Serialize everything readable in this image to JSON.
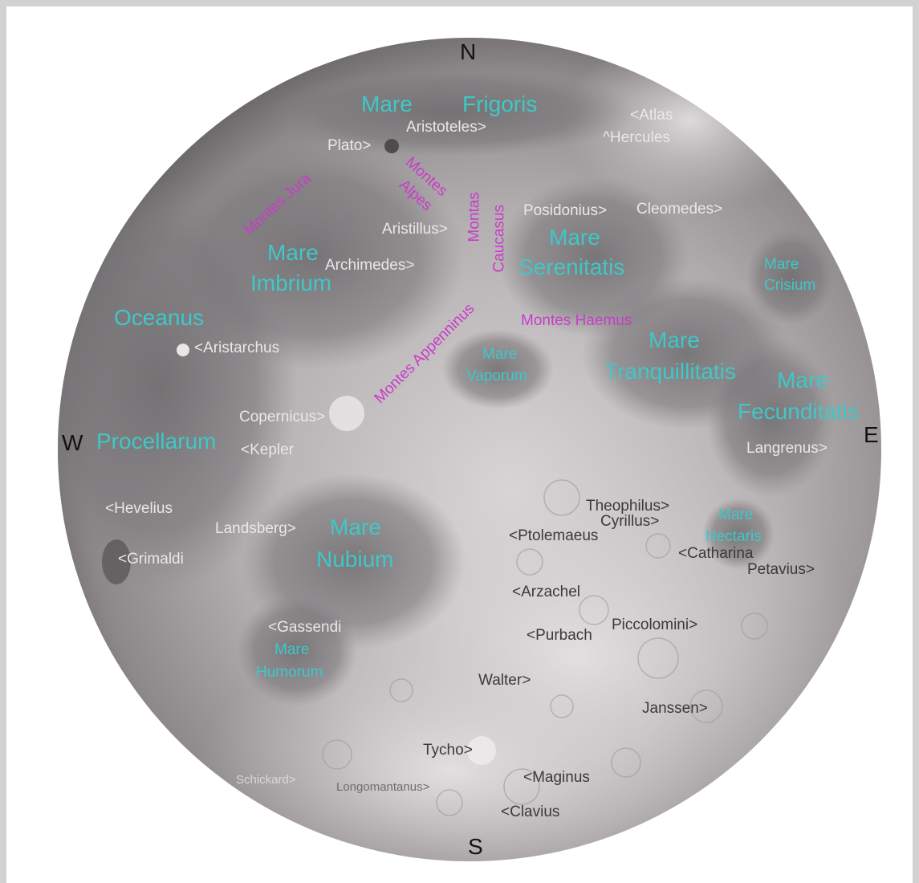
{
  "compass": {
    "north": "N",
    "south": "S",
    "east": "E",
    "west": "W"
  },
  "maria": {
    "mare_frigoris_1": "Mare",
    "mare_frigoris_2": "Frigoris",
    "mare_imbrium_1": "Mare",
    "mare_imbrium_2": "Imbrium",
    "oceanus_1": "Oceanus",
    "oceanus_2": "Procellarum",
    "mare_serenitatis_1": "Mare",
    "mare_serenitatis_2": "Serenitatis",
    "mare_crisium_1": "Mare",
    "mare_crisium_2": "Crisium",
    "mare_tranquillitatis_1": "Mare",
    "mare_tranquillitatis_2": "Tranquillitatis",
    "mare_fecunditatis_1": "Mare",
    "mare_fecunditatis_2": "Fecunditatis",
    "mare_vaporum_1": "Mare",
    "mare_vaporum_2": "Vaporum",
    "mare_nubium_1": "Mare",
    "mare_nubium_2": "Nubium",
    "mare_nectaris_1": "Mare",
    "mare_nectaris_2": "Nectaris",
    "mare_humorum_1": "Mare",
    "mare_humorum_2": "Humorum"
  },
  "mountains": {
    "jura": "Montes Jura",
    "alpes_1": "Montes",
    "alpes_2": "Alpes",
    "caucasus_1": "Montas",
    "caucasus_2": "Caucasus",
    "appenninus": "Montes Appenninus",
    "haemus": "Montes Haemus"
  },
  "craters": {
    "atlas": "<Atlas",
    "hercules": "^Hercules",
    "aristoteles": "Aristoteles>",
    "plato": "Plato>",
    "posidonius": "Posidonius>",
    "cleomedes": "Cleomedes>",
    "aristillus": "Aristillus>",
    "archimedes": "Archimedes>",
    "aristarchus": "<Aristarchus",
    "copernicus": "Copernicus>",
    "kepler": "<Kepler",
    "langrenus": "Langrenus>",
    "hevelius": "<Hevelius",
    "landsberg": "Landsberg>",
    "grimaldi": "<Grimaldi",
    "theophilus": "Theophilus>",
    "cyrillus": "Cyrillus>",
    "ptolemaeus": "<Ptolemaeus",
    "catharina": "<Catharina",
    "petavius": "Petavius>",
    "arzachel": "<Arzachel",
    "gassendi": "<Gassendi",
    "purbach": "<Purbach",
    "piccolomini": "Piccolomini>",
    "walter": "Walter>",
    "janssen": "Janssen>",
    "tycho": "Tycho>",
    "schickard": "Schickard>",
    "longomontanus": "Longomantanus>",
    "maginus": "<Maginus",
    "clavius": "<Clavius"
  },
  "colors": {
    "mare_label": "#3ec8c8",
    "mountain_label": "#c93cc9",
    "crater_light": "#e8e8e8",
    "crater_dark": "#3a3a3a",
    "frame": "#d2d2d2"
  }
}
